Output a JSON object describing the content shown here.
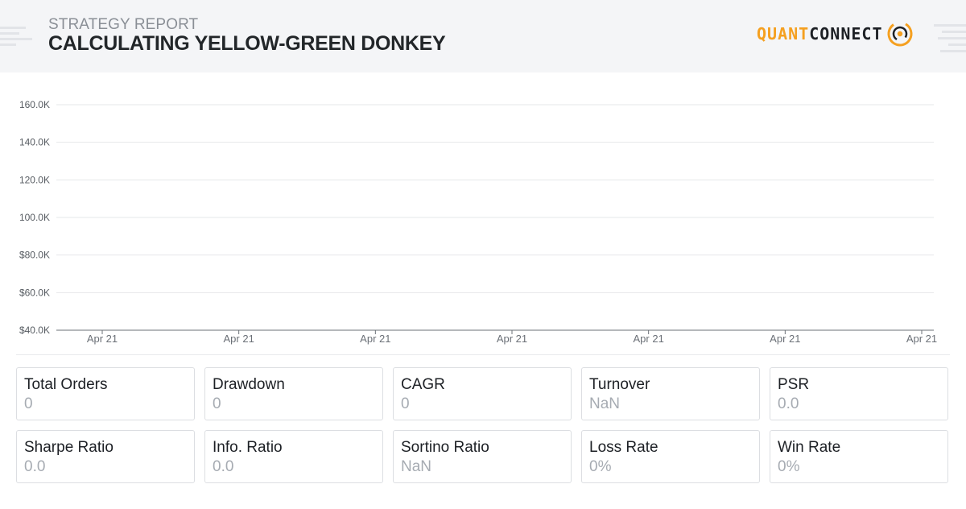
{
  "header": {
    "subtitle": "STRATEGY REPORT",
    "title": "CALCULATING YELLOW-GREEN DONKEY",
    "logo": {
      "part1": "QUANT",
      "part2": "CONNECT",
      "accent_color": "#f5a020",
      "icon": "quantconnect-logo-icon"
    }
  },
  "chart_data": {
    "type": "line",
    "title": "",
    "xlabel": "",
    "ylabel": "",
    "y_tick_labels": [
      "$40.0K",
      "$60.0K",
      "$80.0K",
      "100.0K",
      "120.0K",
      "140.0K",
      "160.0K"
    ],
    "ylim": [
      40000,
      160000
    ],
    "x_tick_labels": [
      "Apr 21",
      "Apr 21",
      "Apr 21",
      "Apr 21",
      "Apr 21",
      "Apr 21",
      "Apr 21"
    ],
    "series": [],
    "grid": true
  },
  "stats": [
    {
      "label": "Total Orders",
      "value": "0"
    },
    {
      "label": "Drawdown",
      "value": "0"
    },
    {
      "label": "CAGR",
      "value": "0"
    },
    {
      "label": "Turnover",
      "value": "NaN"
    },
    {
      "label": "PSR",
      "value": "0.0"
    },
    {
      "label": "Sharpe Ratio",
      "value": "0.0"
    },
    {
      "label": "Info. Ratio",
      "value": "0.0"
    },
    {
      "label": "Sortino Ratio",
      "value": "NaN"
    },
    {
      "label": "Loss Rate",
      "value": "0%"
    },
    {
      "label": "Win Rate",
      "value": "0%"
    }
  ]
}
